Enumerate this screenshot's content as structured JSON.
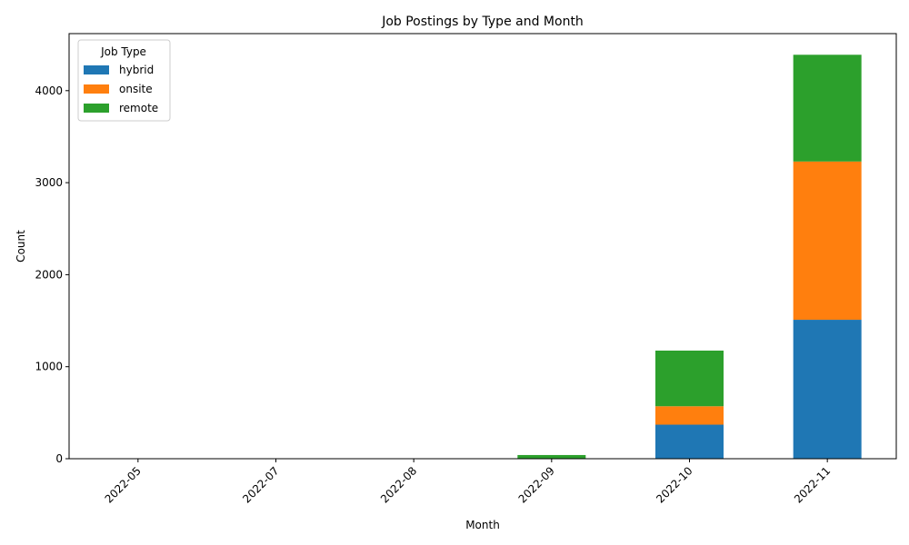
{
  "chart_data": {
    "type": "bar",
    "stacked": true,
    "title": "Job Postings by Type and Month",
    "xlabel": "Month",
    "ylabel": "Count",
    "categories": [
      "2022-05",
      "2022-07",
      "2022-08",
      "2022-09",
      "2022-10",
      "2022-11"
    ],
    "series": [
      {
        "name": "hybrid",
        "color": "#1f77b4",
        "values": [
          0,
          0,
          0,
          2,
          370,
          1510
        ]
      },
      {
        "name": "onsite",
        "color": "#ff7f0e",
        "values": [
          1,
          0,
          1,
          3,
          200,
          1720
        ]
      },
      {
        "name": "remote",
        "color": "#2ca02c",
        "values": [
          1,
          1,
          1,
          35,
          605,
          1160
        ]
      }
    ],
    "ylim": [
      0,
      4620
    ],
    "yticks": [
      0,
      1000,
      2000,
      3000,
      4000
    ],
    "legend": {
      "title": "Job Type",
      "position": "top-left"
    },
    "grid": false
  }
}
